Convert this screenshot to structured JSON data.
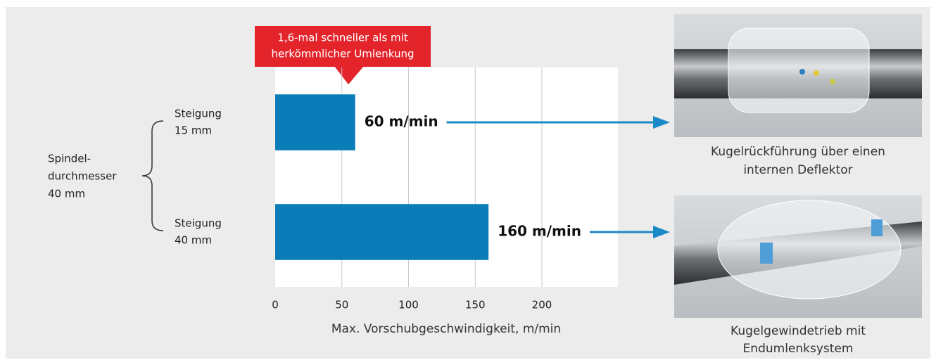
{
  "chart_data": {
    "type": "bar",
    "orientation": "horizontal",
    "categories": [
      [
        "Steigung",
        "15 mm"
      ],
      [
        "Steigung",
        "40 mm"
      ]
    ],
    "values": [
      60,
      160
    ],
    "value_labels": [
      "60 m/min",
      "160 m/min"
    ],
    "color": "#0a7db8",
    "xlim": [
      0,
      257
    ],
    "xticks": [
      0,
      50,
      100,
      150,
      200
    ],
    "grid": true,
    "xlabel": "Max. Vorschubgeschwindigkeit, m/min",
    "group_label": [
      "Spindel-",
      "durchmesser",
      "40 mm"
    ],
    "annotation": [
      "1,6-mal schneller als mit",
      "herkömmlicher Umlenkung"
    ],
    "captions": [
      [
        "Kugelrückführung über einen",
        "internen Deflektor"
      ],
      [
        "Kugelgewindetrieb mit",
        "Endumlenksystem"
      ]
    ]
  }
}
